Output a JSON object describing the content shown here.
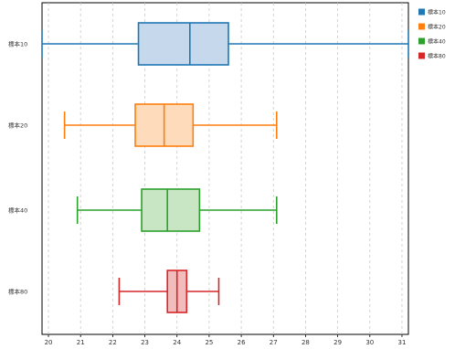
{
  "chart_data": {
    "type": "boxplot",
    "orientation": "horizontal",
    "xlim": [
      19.8,
      31.2
    ],
    "x_ticks": [
      20,
      21,
      22,
      23,
      24,
      25,
      26,
      27,
      28,
      29,
      30,
      31
    ],
    "grid": {
      "vertical": true,
      "style": "dashed"
    },
    "legend_position": "top-right",
    "series": [
      {
        "name": "標本10",
        "color": "#1f77b4",
        "fill": "#c6d9ec",
        "min": 19.8,
        "q1": 22.8,
        "median": 24.4,
        "q3": 25.6,
        "max": 31.2
      },
      {
        "name": "標本20",
        "color": "#ff7f0e",
        "fill": "#fddbbb",
        "min": 20.5,
        "q1": 22.7,
        "median": 23.6,
        "q3": 24.5,
        "max": 27.1
      },
      {
        "name": "標本40",
        "color": "#2ca02c",
        "fill": "#c9e6c4",
        "min": 20.9,
        "q1": 22.9,
        "median": 23.7,
        "q3": 24.7,
        "max": 27.1
      },
      {
        "name": "標本80",
        "color": "#d62728",
        "fill": "#f2bcbc",
        "min": 22.2,
        "q1": 23.7,
        "median": 24.0,
        "q3": 24.3,
        "max": 25.3
      }
    ]
  }
}
